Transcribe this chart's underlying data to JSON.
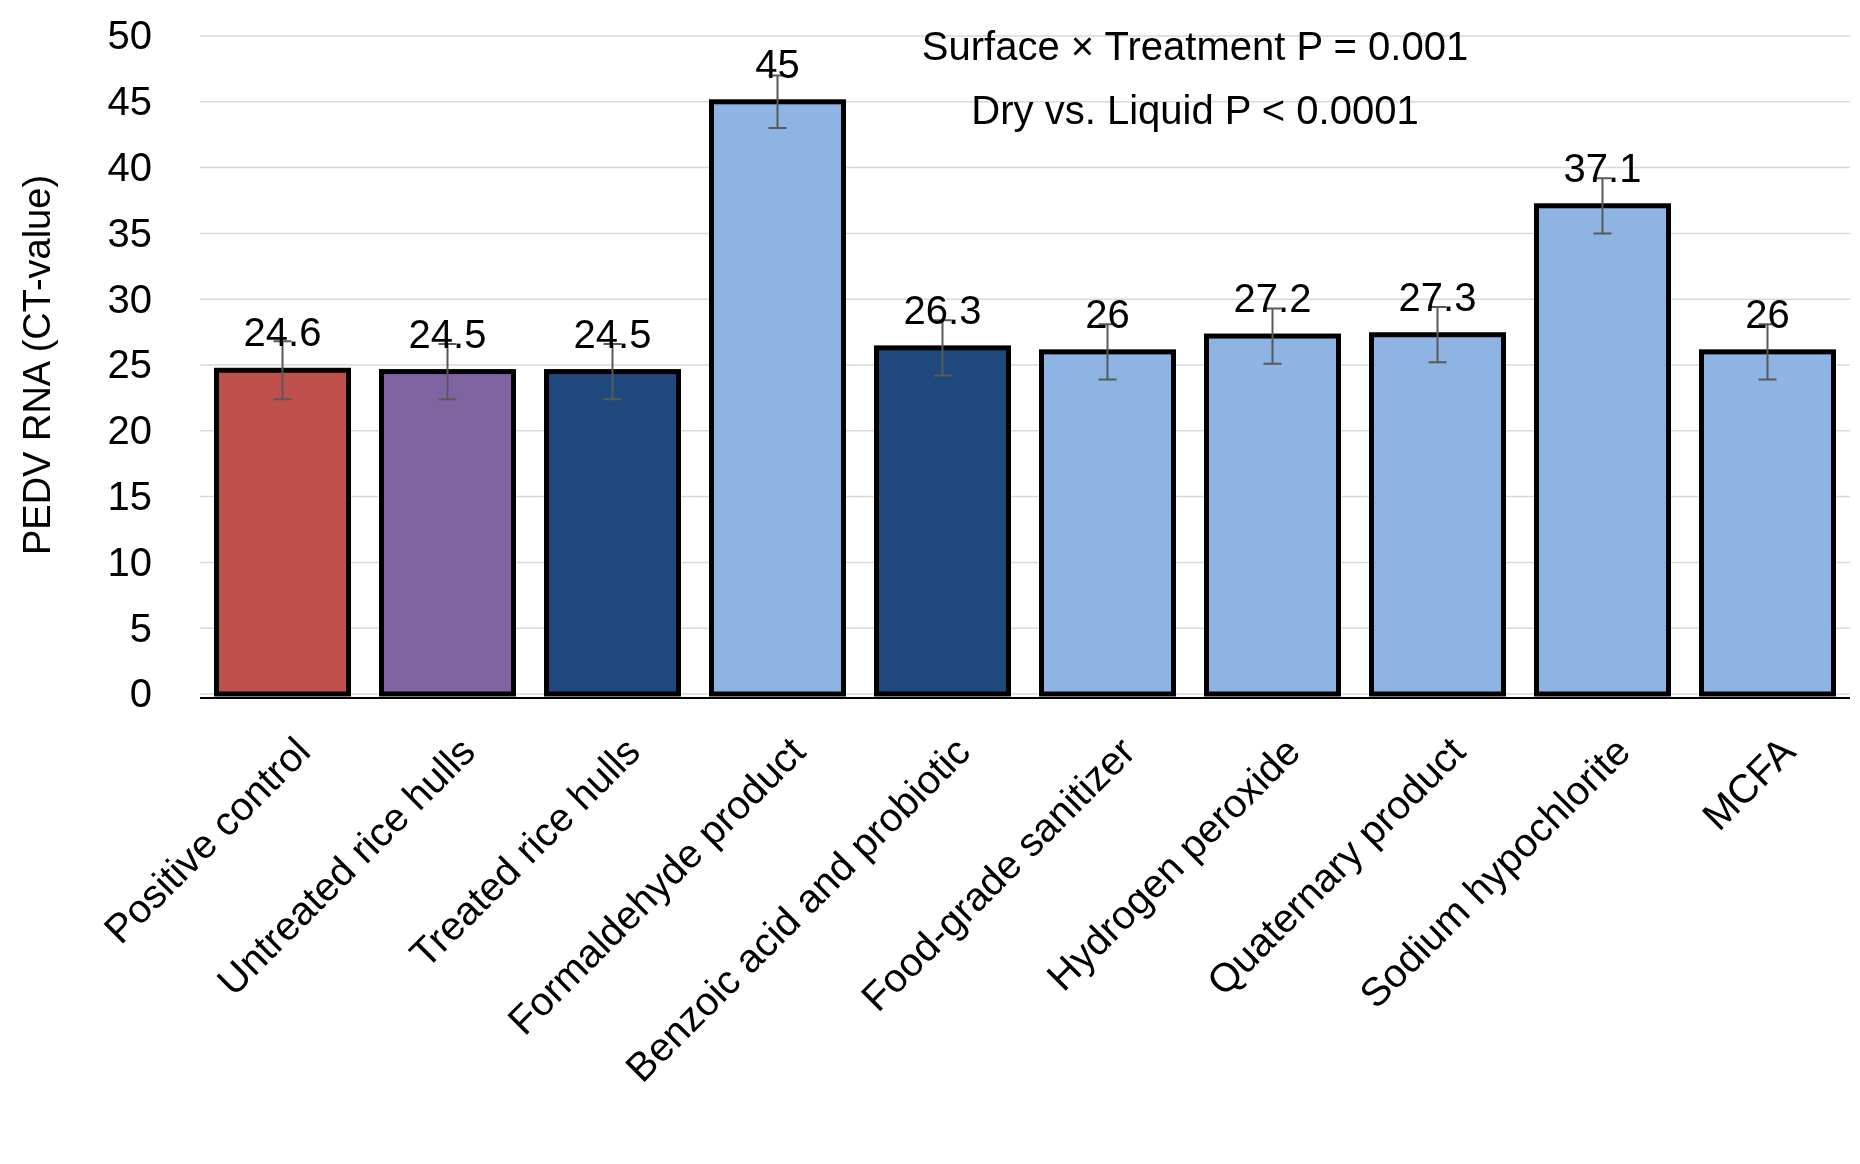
{
  "chart_data": {
    "type": "bar",
    "ylabel": "PEDV RNA (CT-value)",
    "categories": [
      "Positive control",
      "Untreated rice hulls",
      "Treated rice hulls",
      "Formaldehyde product",
      "Benzoic acid and probiotic",
      "Food-grade sanitizer",
      "Hydrogen peroxide",
      "Quaternary product",
      "Sodium hypochlorite",
      "MCFA"
    ],
    "values": [
      24.6,
      24.5,
      24.5,
      45,
      26.3,
      26,
      27.2,
      27.3,
      37.1,
      26
    ],
    "colors": [
      "#c0504d",
      "#8064a2",
      "#1f497d",
      "#8eb4e3",
      "#1f497d",
      "#8eb4e3",
      "#8eb4e3",
      "#8eb4e3",
      "#8eb4e3",
      "#8eb4e3"
    ],
    "errors": [
      2.2,
      2.1,
      2.1,
      2,
      2.1,
      2.1,
      2.1,
      2.1,
      2.1,
      2.1
    ],
    "ylim": [
      0,
      50
    ],
    "yticks": [
      0,
      5,
      10,
      15,
      20,
      25,
      30,
      35,
      40,
      45,
      50
    ],
    "grid": "y",
    "data_labels": true,
    "annotations": [
      "Surface × Treatment P = 0.001",
      "Dry vs. Liquid P < 0.0001"
    ]
  }
}
